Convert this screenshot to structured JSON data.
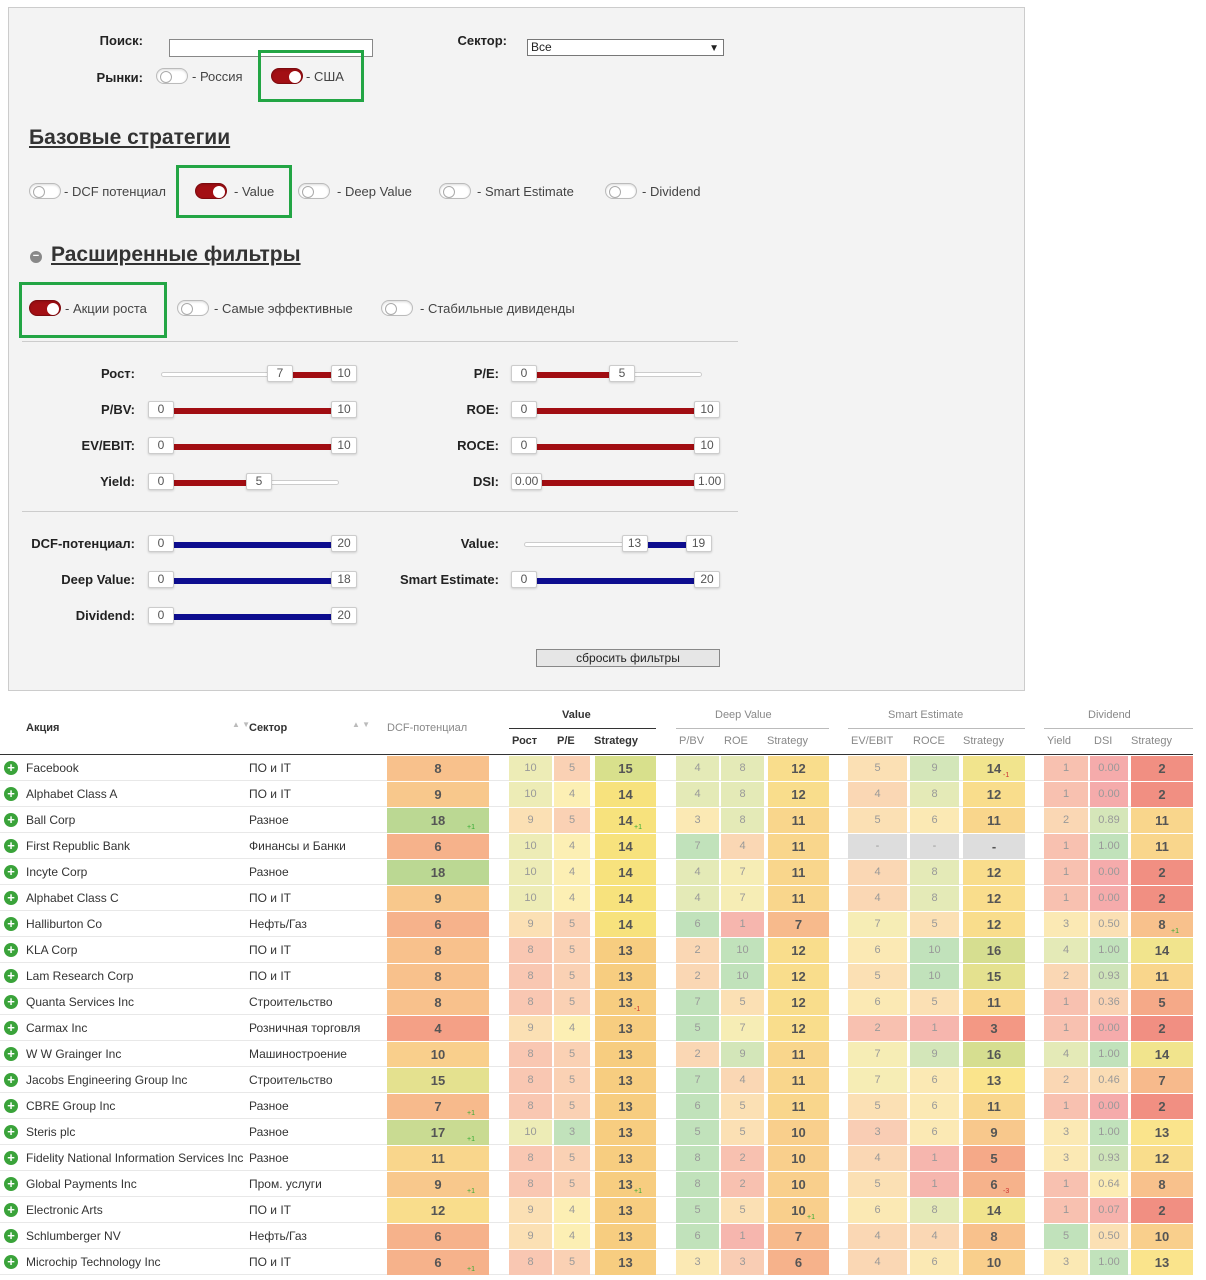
{
  "filters": {
    "search_label": "Поиск:",
    "search_value": "",
    "sector_label": "Сектор:",
    "sector_value": "Все",
    "markets_label": "Рынки:",
    "market_russia": "- Россия",
    "market_usa": "- США",
    "base_title": "Базовые стратегии",
    "base": [
      {
        "label": "- DCF потенциал",
        "on": false
      },
      {
        "label": "- Value",
        "on": true
      },
      {
        "label": "- Deep Value",
        "on": false
      },
      {
        "label": "- Smart Estimate",
        "on": false
      },
      {
        "label": "- Dividend",
        "on": false
      }
    ],
    "ext_title": "Расширенные фильтры",
    "ext": [
      {
        "label": "- Акции роста",
        "on": true
      },
      {
        "label": "- Самые эффективные",
        "on": false
      },
      {
        "label": "- Стабильные дивиденды",
        "on": false
      }
    ],
    "sliders": [
      {
        "label": "Рост:",
        "lo": "7",
        "hi": "10",
        "min": 0,
        "max": 10,
        "color": "red"
      },
      {
        "label": "P/E:",
        "lo": "0",
        "hi": "5",
        "min": 0,
        "max": 10,
        "color": "red"
      },
      {
        "label": "P/BV:",
        "lo": "0",
        "hi": "10",
        "min": 0,
        "max": 10,
        "color": "red"
      },
      {
        "label": "ROE:",
        "lo": "0",
        "hi": "10",
        "min": 0,
        "max": 10,
        "color": "red"
      },
      {
        "label": "EV/EBIT:",
        "lo": "0",
        "hi": "10",
        "min": 0,
        "max": 10,
        "color": "red"
      },
      {
        "label": "ROCE:",
        "lo": "0",
        "hi": "10",
        "min": 0,
        "max": 10,
        "color": "red"
      },
      {
        "label": "Yield:",
        "lo": "0",
        "hi": "5",
        "min": 0,
        "max": 10,
        "color": "red"
      },
      {
        "label": "DSI:",
        "lo": "0.00",
        "hi": "1.00",
        "min": 0,
        "max": 1,
        "color": "red"
      },
      {
        "label": "DCF-потенциал:",
        "lo": "0",
        "hi": "20",
        "min": 0,
        "max": 20,
        "color": "blue"
      },
      {
        "label": "Value:",
        "lo": "13",
        "hi": "19",
        "min": 0,
        "max": 20,
        "color": "blue"
      },
      {
        "label": "Deep Value:",
        "lo": "0",
        "hi": "18",
        "min": 0,
        "max": 18,
        "color": "blue"
      },
      {
        "label": "Smart Estimate:",
        "lo": "0",
        "hi": "20",
        "min": 0,
        "max": 20,
        "color": "blue"
      },
      {
        "label": "Dividend:",
        "lo": "0",
        "hi": "20",
        "min": 0,
        "max": 20,
        "color": "blue"
      }
    ],
    "reset": "сбросить фильтры"
  },
  "table": {
    "h_stock": "Акция",
    "h_sector": "Сектор",
    "h_dcf": "DCF-потенциал",
    "groups": [
      "Value",
      "Deep Value",
      "Smart Estimate",
      "Dividend"
    ],
    "subs": [
      "Рост",
      "P/E",
      "Strategy",
      "P/BV",
      "ROE",
      "Strategy",
      "EV/EBIT",
      "ROCE",
      "Strategy",
      "Yield",
      "DSI",
      "Strategy"
    ],
    "rows": [
      {
        "name": "Facebook",
        "sector": "ПО и IT",
        "v": [
          "8",
          "10",
          "5",
          "15",
          "4",
          "8",
          "12",
          "5",
          "9",
          "14",
          "1",
          "0.00",
          "2"
        ],
        "d": {
          "9": "-1"
        }
      },
      {
        "name": "Alphabet Class A",
        "sector": "ПО и IT",
        "v": [
          "9",
          "10",
          "4",
          "14",
          "4",
          "8",
          "12",
          "4",
          "8",
          "12",
          "1",
          "0.00",
          "2"
        ]
      },
      {
        "name": "Ball Corp",
        "sector": "Разное",
        "v": [
          "18",
          "9",
          "5",
          "14",
          "3",
          "8",
          "11",
          "5",
          "6",
          "11",
          "2",
          "0.89",
          "11"
        ],
        "d": {
          "0": "+1",
          "3": "+1"
        }
      },
      {
        "name": "First Republic Bank",
        "sector": "Финансы и Банки",
        "v": [
          "6",
          "10",
          "4",
          "14",
          "7",
          "4",
          "11",
          "-",
          "-",
          "-",
          "1",
          "1.00",
          "11"
        ]
      },
      {
        "name": "Incyte Corp",
        "sector": "Разное",
        "v": [
          "18",
          "10",
          "4",
          "14",
          "4",
          "7",
          "11",
          "4",
          "8",
          "12",
          "1",
          "0.00",
          "2"
        ]
      },
      {
        "name": "Alphabet Class C",
        "sector": "ПО и IT",
        "v": [
          "9",
          "10",
          "4",
          "14",
          "4",
          "7",
          "11",
          "4",
          "8",
          "12",
          "1",
          "0.00",
          "2"
        ]
      },
      {
        "name": "Halliburton Co",
        "sector": "Нефть/Газ",
        "v": [
          "6",
          "9",
          "5",
          "14",
          "6",
          "1",
          "7",
          "7",
          "5",
          "12",
          "3",
          "0.50",
          "8"
        ],
        "d": {
          "12": "+1"
        }
      },
      {
        "name": "KLA Corp",
        "sector": "ПО и IT",
        "v": [
          "8",
          "8",
          "5",
          "13",
          "2",
          "10",
          "12",
          "6",
          "10",
          "16",
          "4",
          "1.00",
          "14"
        ]
      },
      {
        "name": "Lam Research Corp",
        "sector": "ПО и IT",
        "v": [
          "8",
          "8",
          "5",
          "13",
          "2",
          "10",
          "12",
          "5",
          "10",
          "15",
          "2",
          "0.93",
          "11"
        ]
      },
      {
        "name": "Quanta Services Inc",
        "sector": "Строительство",
        "v": [
          "8",
          "8",
          "5",
          "13",
          "7",
          "5",
          "12",
          "6",
          "5",
          "11",
          "1",
          "0.36",
          "5"
        ],
        "d": {
          "3": "-1"
        }
      },
      {
        "name": "Carmax Inc",
        "sector": "Розничная торговля",
        "v": [
          "4",
          "9",
          "4",
          "13",
          "5",
          "7",
          "12",
          "2",
          "1",
          "3",
          "1",
          "0.00",
          "2"
        ]
      },
      {
        "name": "W W Grainger Inc",
        "sector": "Машиностроение",
        "v": [
          "10",
          "8",
          "5",
          "13",
          "2",
          "9",
          "11",
          "7",
          "9",
          "16",
          "4",
          "1.00",
          "14"
        ]
      },
      {
        "name": "Jacobs Engineering Group Inc",
        "sector": "Строительство",
        "v": [
          "15",
          "8",
          "5",
          "13",
          "7",
          "4",
          "11",
          "7",
          "6",
          "13",
          "2",
          "0.46",
          "7"
        ]
      },
      {
        "name": "CBRE Group Inc",
        "sector": "Разное",
        "v": [
          "7",
          "8",
          "5",
          "13",
          "6",
          "5",
          "11",
          "5",
          "6",
          "11",
          "1",
          "0.00",
          "2"
        ],
        "d": {
          "0": "+1"
        }
      },
      {
        "name": "Steris plc",
        "sector": "Разное",
        "v": [
          "17",
          "10",
          "3",
          "13",
          "5",
          "5",
          "10",
          "3",
          "6",
          "9",
          "3",
          "1.00",
          "13"
        ],
        "d": {
          "0": "+1"
        }
      },
      {
        "name": "Fidelity National Information Services Inc",
        "sector": "Разное",
        "v": [
          "11",
          "8",
          "5",
          "13",
          "8",
          "2",
          "10",
          "4",
          "1",
          "5",
          "3",
          "0.93",
          "12"
        ]
      },
      {
        "name": "Global Payments Inc",
        "sector": "Пром. услуги",
        "v": [
          "9",
          "8",
          "5",
          "13",
          "8",
          "2",
          "10",
          "5",
          "1",
          "6",
          "1",
          "0.64",
          "8"
        ],
        "d": {
          "0": "+1",
          "3": "+1",
          "9": "-3"
        }
      },
      {
        "name": "Electronic Arts",
        "sector": "ПО и IT",
        "v": [
          "12",
          "9",
          "4",
          "13",
          "5",
          "5",
          "10",
          "6",
          "8",
          "14",
          "1",
          "0.07",
          "2"
        ],
        "d": {
          "6": "+1"
        }
      },
      {
        "name": "Schlumberger NV",
        "sector": "Нефть/Газ",
        "v": [
          "6",
          "9",
          "4",
          "13",
          "6",
          "1",
          "7",
          "4",
          "4",
          "8",
          "5",
          "0.50",
          "10"
        ]
      },
      {
        "name": "Microchip Technology Inc",
        "sector": "ПО и IT",
        "v": [
          "6",
          "8",
          "5",
          "13",
          "3",
          "3",
          "6",
          "4",
          "6",
          "10",
          "3",
          "1.00",
          "13"
        ],
        "d": {
          "0": "+1"
        }
      }
    ]
  }
}
